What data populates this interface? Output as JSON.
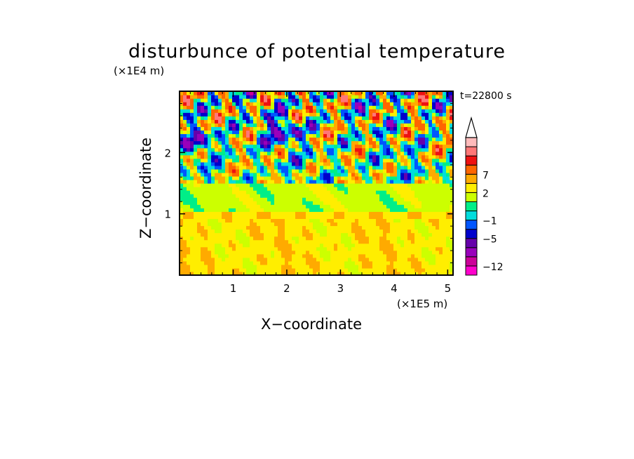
{
  "chart_data": {
    "type": "heatmap",
    "title": "disturbunce of potential temperature",
    "xlabel": "X−coordinate",
    "ylabel": "Z−coordinate",
    "x_unit": "(×1E5 m)",
    "y_unit": "(×1E4 m)",
    "time_label": "t=22800 s",
    "xlim": [
      0,
      5.1
    ],
    "ylim": [
      0,
      3.0
    ],
    "x_ticks": [
      "1",
      "2",
      "3",
      "4",
      "5"
    ],
    "x_tick_values": [
      1,
      2,
      3,
      4,
      5
    ],
    "y_ticks": [
      "1",
      "2"
    ],
    "y_tick_values": [
      1,
      2
    ],
    "colorbar": {
      "levels_low_to_high": [
        -12,
        -9,
        -7,
        -5,
        -3,
        -1,
        0,
        1,
        2,
        4,
        7,
        9
      ],
      "colors_low_to_high": [
        "#ff00cc",
        "#cc0099",
        "#9900bb",
        "#6600aa",
        "#0000cc",
        "#0055ff",
        "#00dddd",
        "#00ee88",
        "#ccff00",
        "#ffee00",
        "#ffaa00",
        "#ff6600",
        "#ee1111",
        "#ff7777",
        "#ffbbbb"
      ],
      "labels": [
        "7",
        "2",
        "−1",
        "−5",
        "−12"
      ],
      "label_values": [
        7,
        2,
        -1,
        -5,
        -12
      ],
      "extend": "max"
    },
    "field_bands": [
      {
        "z_range": [
          0,
          0.9
        ],
        "typical_value": 1.5,
        "description_color": "yellow-orange"
      },
      {
        "z_range": [
          0.9,
          1.0
        ],
        "typical_value": 2,
        "description_color": "yellow"
      },
      {
        "z_range": [
          1.0,
          1.5
        ],
        "typical_value": 0,
        "description_color": "green"
      },
      {
        "z_range": [
          1.5,
          3.0
        ],
        "typical_value": 0,
        "description_color": "mixed red/orange/blue wave pattern"
      }
    ]
  }
}
